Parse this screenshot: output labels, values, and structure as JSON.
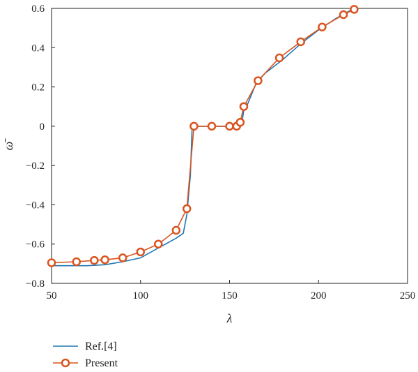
{
  "chart_data": {
    "type": "line",
    "xlabel": "λ",
    "ylabel": "ω̄",
    "xlim": [
      50,
      250
    ],
    "ylim": [
      -0.8,
      0.6
    ],
    "xticks": [
      50,
      100,
      150,
      200,
      250
    ],
    "yticks": [
      -0.8,
      -0.6,
      -0.4,
      -0.2,
      0,
      0.2,
      0.4,
      0.6
    ],
    "xtick_labels": [
      "50",
      "100",
      "150",
      "200",
      "250"
    ],
    "ytick_labels": [
      "−0.8",
      "−0.6",
      "−0.4",
      "−0.2",
      "0",
      "0.2",
      "0.4",
      "0.6"
    ],
    "grid": false,
    "legend_position": "bottom-left, below the plot",
    "series": [
      {
        "name": "Ref.[4]",
        "color": "#1f77b4",
        "marker": "none",
        "x": [
          50,
          60,
          70,
          80,
          90,
          100,
          110,
          115,
          120,
          124,
          126,
          128,
          129,
          130,
          140,
          150,
          155,
          157,
          158,
          160,
          165,
          170,
          180,
          190,
          200,
          210,
          220
        ],
        "y": [
          -0.71,
          -0.71,
          -0.71,
          -0.705,
          -0.69,
          -0.67,
          -0.62,
          -0.595,
          -0.57,
          -0.545,
          -0.45,
          -0.25,
          0,
          0,
          0,
          0,
          0,
          0.02,
          0.08,
          0.11,
          0.22,
          0.27,
          0.34,
          0.42,
          0.49,
          0.55,
          0.6
        ]
      },
      {
        "name": "Present",
        "color": "#d9541e",
        "marker": "circle",
        "x": [
          50,
          64,
          74,
          80,
          90,
          100,
          110,
          120,
          126,
          130,
          140,
          150,
          154,
          156,
          158,
          166,
          178,
          190,
          202,
          214,
          220
        ],
        "y": [
          -0.695,
          -0.69,
          -0.683,
          -0.68,
          -0.67,
          -0.64,
          -0.6,
          -0.53,
          -0.42,
          0,
          0,
          0,
          0,
          0.02,
          0.1,
          0.232,
          0.348,
          0.43,
          0.505,
          0.568,
          0.595
        ]
      }
    ]
  }
}
